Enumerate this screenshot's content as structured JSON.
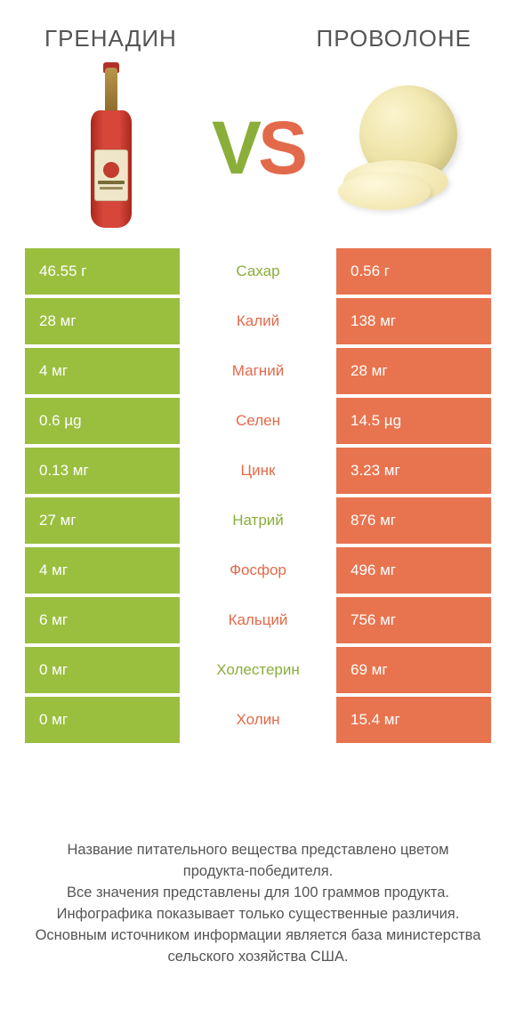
{
  "colors": {
    "left_bg": "#9abf3f",
    "right_bg": "#e8744f",
    "left_label": "#8aae3a",
    "right_label": "#e26a4a",
    "title_text": "#555555"
  },
  "products": {
    "left": "ГРЕНАДИН",
    "right": "ПРОВОЛОНЕ"
  },
  "vs": {
    "v": "V",
    "s": "S"
  },
  "rows": [
    {
      "nutrient": "Сахар",
      "left": "46.55 г",
      "right": "0.56 г",
      "winner": "left"
    },
    {
      "nutrient": "Калий",
      "left": "28 мг",
      "right": "138 мг",
      "winner": "right"
    },
    {
      "nutrient": "Магний",
      "left": "4 мг",
      "right": "28 мг",
      "winner": "right"
    },
    {
      "nutrient": "Селен",
      "left": "0.6 µg",
      "right": "14.5 µg",
      "winner": "right"
    },
    {
      "nutrient": "Цинк",
      "left": "0.13 мг",
      "right": "3.23 мг",
      "winner": "right"
    },
    {
      "nutrient": "Натрий",
      "left": "27 мг",
      "right": "876 мг",
      "winner": "left"
    },
    {
      "nutrient": "Фосфор",
      "left": "4 мг",
      "right": "496 мг",
      "winner": "right"
    },
    {
      "nutrient": "Кальций",
      "left": "6 мг",
      "right": "756 мг",
      "winner": "right"
    },
    {
      "nutrient": "Холестерин",
      "left": "0 мг",
      "right": "69 мг",
      "winner": "left"
    },
    {
      "nutrient": "Холин",
      "left": "0 мг",
      "right": "15.4 мг",
      "winner": "right"
    }
  ],
  "footnote": "Название питательного вещества представлено цветом продукта‑победителя.\nВсе значения представлены для 100 граммов продукта.\nИнфографика показывает только существенные различия.\nОсновным источником информации является база министерства сельского хозяйства США."
}
